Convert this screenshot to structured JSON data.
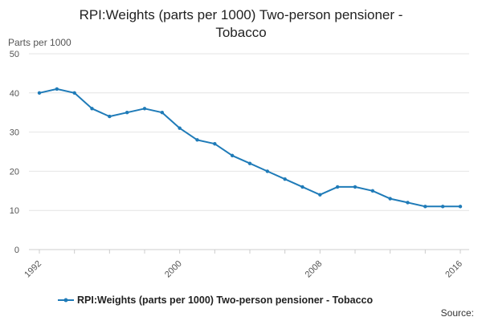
{
  "page": {
    "source_label": "Source:"
  },
  "chart_data": {
    "type": "line",
    "title_lines": [
      "RPI:Weights (parts per 1000) Two-person pensioner -",
      "Tobacco"
    ],
    "ylabel": "Parts per 1000",
    "xlabel": "",
    "ylim": [
      0,
      50
    ],
    "yticks": [
      0,
      10,
      20,
      30,
      40,
      50
    ],
    "xlim": [
      1992,
      2016
    ],
    "xticks": [
      1992,
      2000,
      2008,
      2016
    ],
    "grid": true,
    "legend_position": "bottom",
    "series": [
      {
        "name": "RPI:Weights (parts per 1000) Two-person pensioner - Tobacco",
        "color": "#1f7bb8",
        "x": [
          1992,
          1993,
          1994,
          1995,
          1996,
          1997,
          1998,
          1999,
          2000,
          2001,
          2002,
          2003,
          2004,
          2005,
          2006,
          2007,
          2008,
          2009,
          2010,
          2011,
          2012,
          2013,
          2014,
          2015,
          2016
        ],
        "values": [
          40,
          41,
          40,
          36,
          34,
          35,
          36,
          35,
          31,
          28,
          27,
          24,
          22,
          20,
          18,
          16,
          14,
          16,
          16,
          15,
          13,
          12,
          11,
          11,
          11
        ]
      }
    ]
  }
}
